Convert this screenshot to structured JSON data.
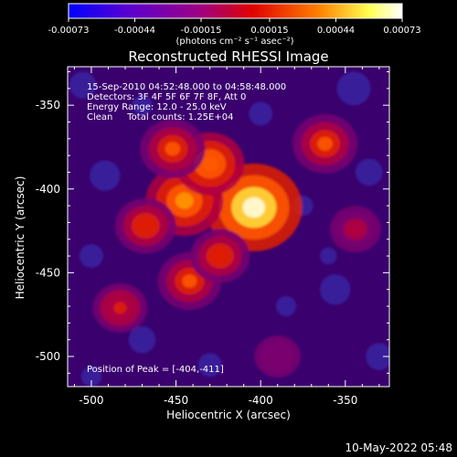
{
  "colorbar": {
    "tick_labels": [
      "-0.00073",
      "-0.00044",
      "-0.00015",
      "0.00015",
      "0.00044",
      "0.00073"
    ],
    "units_label": "(photons cm⁻² s⁻¹ asec⁻²)",
    "colors": [
      "#0000ff",
      "#6a00c8",
      "#b00064",
      "#e00000",
      "#ff7a00",
      "#ffff60",
      "#ffffff"
    ]
  },
  "plot": {
    "title": "Reconstructed RHESSI Image",
    "xlabel": "Heliocentric X (arcsec)",
    "ylabel": "Heliocentric Y (arcsec)",
    "x_ticks": [
      "-500",
      "-450",
      "-400",
      "-350"
    ],
    "y_ticks": [
      "-350",
      "-400",
      "-450",
      "-500"
    ],
    "annotations": [
      "15-Sep-2010 04:52:48.000 to 04:58:48.000",
      "Detectors: 3F 4F 5F 6F 7F 8F, Att 0",
      "Energy Range: 12.0 - 25.0 keV",
      "Clean     Total counts: 1.25E+04"
    ],
    "peak_label": "Position of Peak = [-404,-411]"
  },
  "footer": {
    "timestamp": "10-May-2022 05:48"
  },
  "chart_data": {
    "type": "heatmap",
    "title": "Reconstructed RHESSI Image",
    "xlabel": "Heliocentric X (arcsec)",
    "ylabel": "Heliocentric Y (arcsec)",
    "xlim": [
      -514,
      -324
    ],
    "ylim": [
      -518,
      -327
    ],
    "zlim": [
      -0.00073,
      0.00073
    ],
    "colorbar_ticks": [
      -0.00073,
      -0.00044,
      -0.00015,
      0.00015,
      0.00044,
      0.00073
    ],
    "peak": [
      -404,
      -411
    ],
    "sources": [
      {
        "x": -404,
        "y": -411,
        "value": 0.00073
      },
      {
        "x": -445,
        "y": -407,
        "value": 0.0005
      },
      {
        "x": -430,
        "y": -385,
        "value": 0.0004
      },
      {
        "x": -452,
        "y": -376,
        "value": 0.00035
      },
      {
        "x": -468,
        "y": -422,
        "value": 0.0003
      },
      {
        "x": -442,
        "y": -455,
        "value": 0.00033
      },
      {
        "x": -424,
        "y": -440,
        "value": 0.00028
      },
      {
        "x": -483,
        "y": -471,
        "value": 0.00022
      },
      {
        "x": -362,
        "y": -373,
        "value": 0.00035
      },
      {
        "x": -344,
        "y": -424,
        "value": 0.00018
      },
      {
        "x": -390,
        "y": -500,
        "value": 0.00012
      }
    ],
    "grid": false
  }
}
